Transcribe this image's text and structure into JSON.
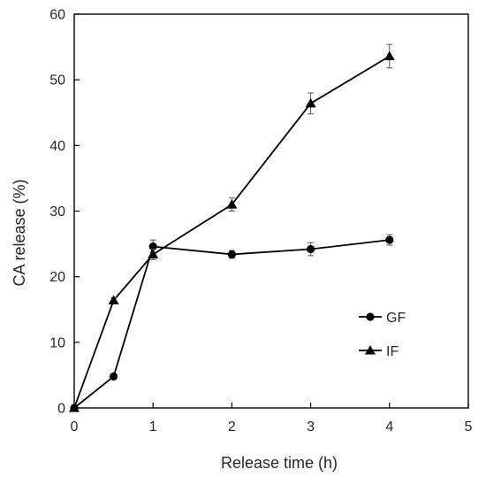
{
  "chart_data": {
    "type": "line",
    "title": "",
    "xlabel": "Release time (h)",
    "ylabel": "CA release (%)",
    "xlim": [
      0,
      5
    ],
    "ylim": [
      0,
      60
    ],
    "xticks": [
      0,
      1,
      2,
      3,
      4,
      5
    ],
    "yticks": [
      0,
      10,
      20,
      30,
      40,
      50,
      60
    ],
    "xtick_labels": [
      "0",
      "1",
      "2",
      "3",
      "4",
      "5"
    ],
    "ytick_labels": [
      "0",
      "10",
      "20",
      "30",
      "40",
      "50",
      "60"
    ],
    "grid": false,
    "legend_position": "lower-right",
    "series": [
      {
        "name": "GF",
        "marker": "circle",
        "color": "#000000",
        "x": [
          0,
          0.5,
          1,
          2,
          3,
          4
        ],
        "y": [
          0,
          4.8,
          24.6,
          23.4,
          24.2,
          25.6
        ],
        "err": [
          0,
          0.3,
          1.0,
          0.6,
          1.0,
          0.8
        ]
      },
      {
        "name": "IF",
        "marker": "triangle",
        "color": "#000000",
        "x": [
          0,
          0.5,
          1,
          2,
          3,
          4
        ],
        "y": [
          0,
          16.4,
          23.4,
          31.0,
          46.4,
          53.6
        ],
        "err": [
          0,
          0.4,
          0.8,
          1.0,
          1.6,
          1.8
        ]
      }
    ]
  }
}
